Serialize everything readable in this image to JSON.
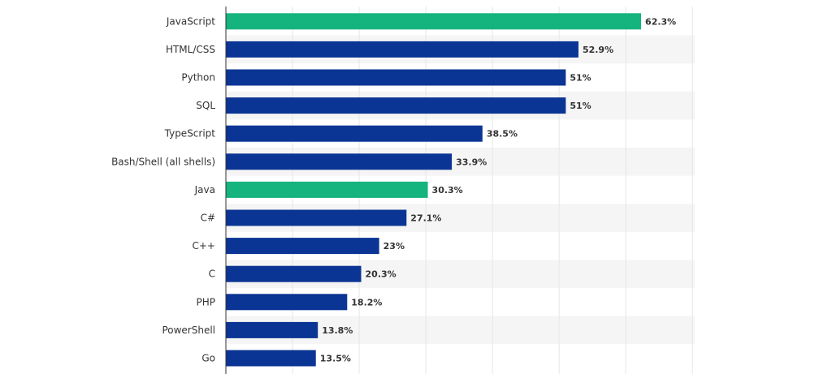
{
  "chart_data": {
    "type": "bar",
    "orientation": "horizontal",
    "categories": [
      "JavaScript",
      "HTML/CSS",
      "Python",
      "SQL",
      "TypeScript",
      "Bash/Shell (all shells)",
      "Java",
      "C#",
      "C++",
      "C",
      "PHP",
      "PowerShell",
      "Go"
    ],
    "values": [
      62.3,
      52.9,
      51,
      51,
      38.5,
      33.9,
      30.3,
      27.1,
      23,
      20.3,
      18.2,
      13.8,
      13.5
    ],
    "value_labels": [
      "62.3%",
      "52.9%",
      "51%",
      "51%",
      "38.5%",
      "33.9%",
      "30.3%",
      "27.1%",
      "23%",
      "20.3%",
      "18.2%",
      "13.8%",
      "13.5%"
    ],
    "highlighted": [
      "JavaScript",
      "Java"
    ],
    "colors": {
      "default": "#0b3594",
      "highlight": "#15b37e",
      "grid": "#e6e6e6",
      "stripe": "#f5f5f5",
      "axis": "#333333"
    },
    "xlim": [
      0,
      70
    ],
    "grid": true,
    "title": "",
    "xlabel": "",
    "ylabel": ""
  }
}
